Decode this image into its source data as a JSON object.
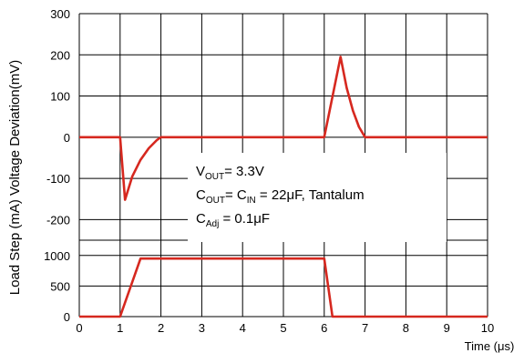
{
  "chart_data": {
    "type": "line",
    "xlabel": "Time (μs)",
    "ylabel": "Load Step (mA) Voltage Deviation(mV)",
    "x_ticks": [
      "0",
      "1",
      "2",
      "3",
      "4",
      "5",
      "6",
      "7",
      "8",
      "9",
      "10"
    ],
    "xlim": [
      0,
      10
    ],
    "grid": true,
    "line_color": "#d6281f",
    "panels": [
      {
        "name": "Voltage Deviation (mV)",
        "ylim": [
          -250,
          300
        ],
        "y_ticks": [
          "300",
          "200",
          "100",
          "0",
          "-100",
          "-200"
        ],
        "y_tick_values": [
          300,
          200,
          100,
          0,
          -100,
          -200
        ],
        "x": [
          0,
          1.0,
          1.12,
          1.3,
          1.5,
          1.7,
          1.9,
          2.0,
          6.0,
          6.4,
          6.55,
          6.7,
          6.85,
          7.0,
          10
        ],
        "y": [
          0,
          0,
          -152,
          -95,
          -55,
          -27,
          -7,
          0,
          0,
          195,
          120,
          65,
          25,
          0,
          0
        ]
      },
      {
        "name": "Load Step (mA)",
        "ylim": [
          0,
          1250
        ],
        "y_ticks": [
          "1000",
          "500",
          "0"
        ],
        "y_tick_values": [
          1000,
          500,
          0
        ],
        "x": [
          0,
          1.0,
          1.5,
          6.0,
          6.2,
          10
        ],
        "y": [
          0,
          0,
          950,
          950,
          0,
          0
        ]
      }
    ],
    "annotation": {
      "vout_base": "V",
      "vout_sub": "OUT",
      "vout_rest": "= 3.3V",
      "cout_base": "C",
      "cout_sub": "OUT",
      "cout_mid": "= C",
      "cin_sub": "IN",
      "cout_rest": " = 22μF, Tantalum",
      "cadj_base": "C",
      "cadj_sub": "Adj",
      "cadj_rest": " = 0.1μF"
    }
  }
}
